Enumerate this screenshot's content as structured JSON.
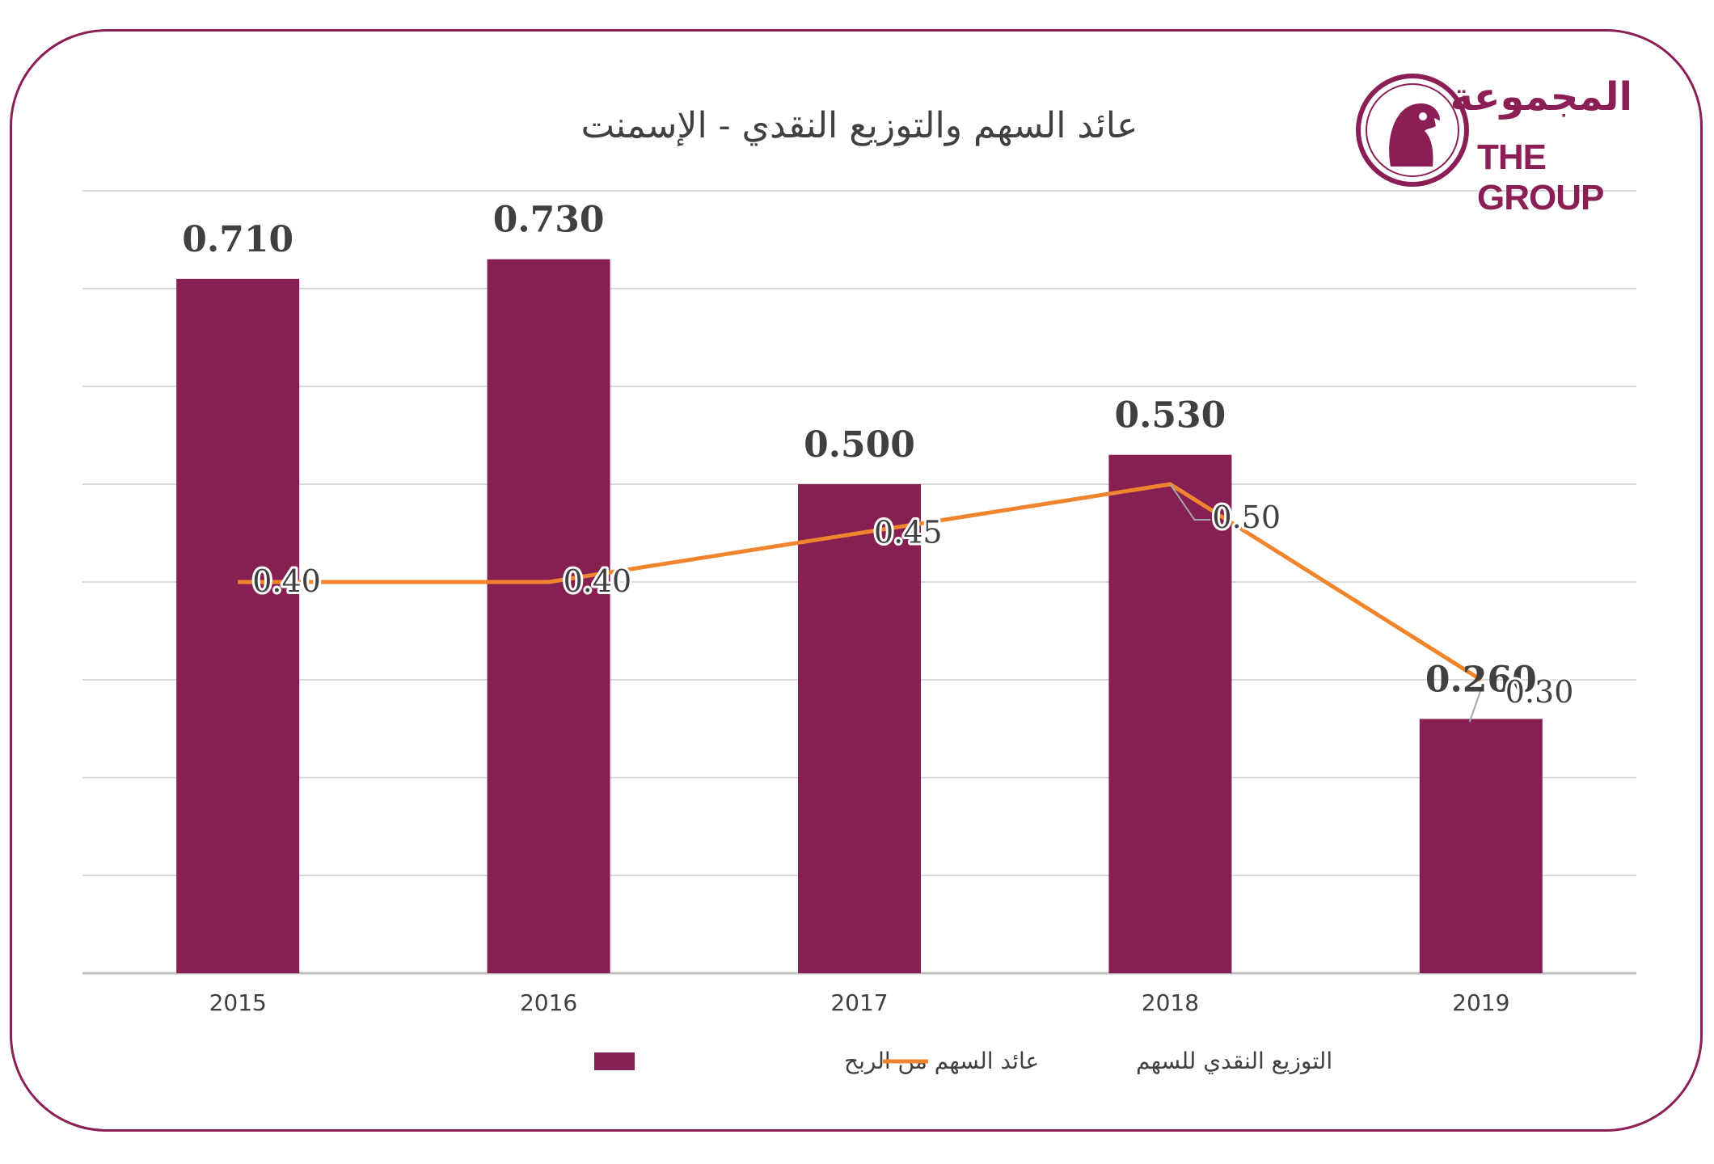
{
  "logo": {
    "arabic_text": "المجموعة",
    "english_text": "THE GROUP",
    "icon": "falcon-emblem-icon"
  },
  "colors": {
    "frame": "#8a1e55",
    "bar": "#862052",
    "line": "#f0852d",
    "grid": "#d9d9d9",
    "text": "#404040"
  },
  "chart_data": {
    "type": "bar",
    "title": "عائد السهم والتوزيع النقدي - الإسمنت",
    "categories": [
      "2015",
      "2016",
      "2017",
      "2018",
      "2019"
    ],
    "ylim": [
      0,
      0.8
    ],
    "grid": true,
    "legend_position": "bottom",
    "series": [
      {
        "name": "عائد السهم من الربح",
        "type": "bar",
        "values": [
          0.71,
          0.73,
          0.5,
          0.53,
          0.26
        ],
        "labels": [
          "0.710",
          "0.730",
          "0.500",
          "0.530",
          "0.260"
        ]
      },
      {
        "name": "التوزيع النقدي للسهم",
        "type": "line",
        "values": [
          0.4,
          0.4,
          0.45,
          0.5,
          0.3
        ],
        "labels": [
          "0.40",
          "0.40",
          "0.45",
          "0.50",
          "0.30"
        ]
      }
    ]
  }
}
